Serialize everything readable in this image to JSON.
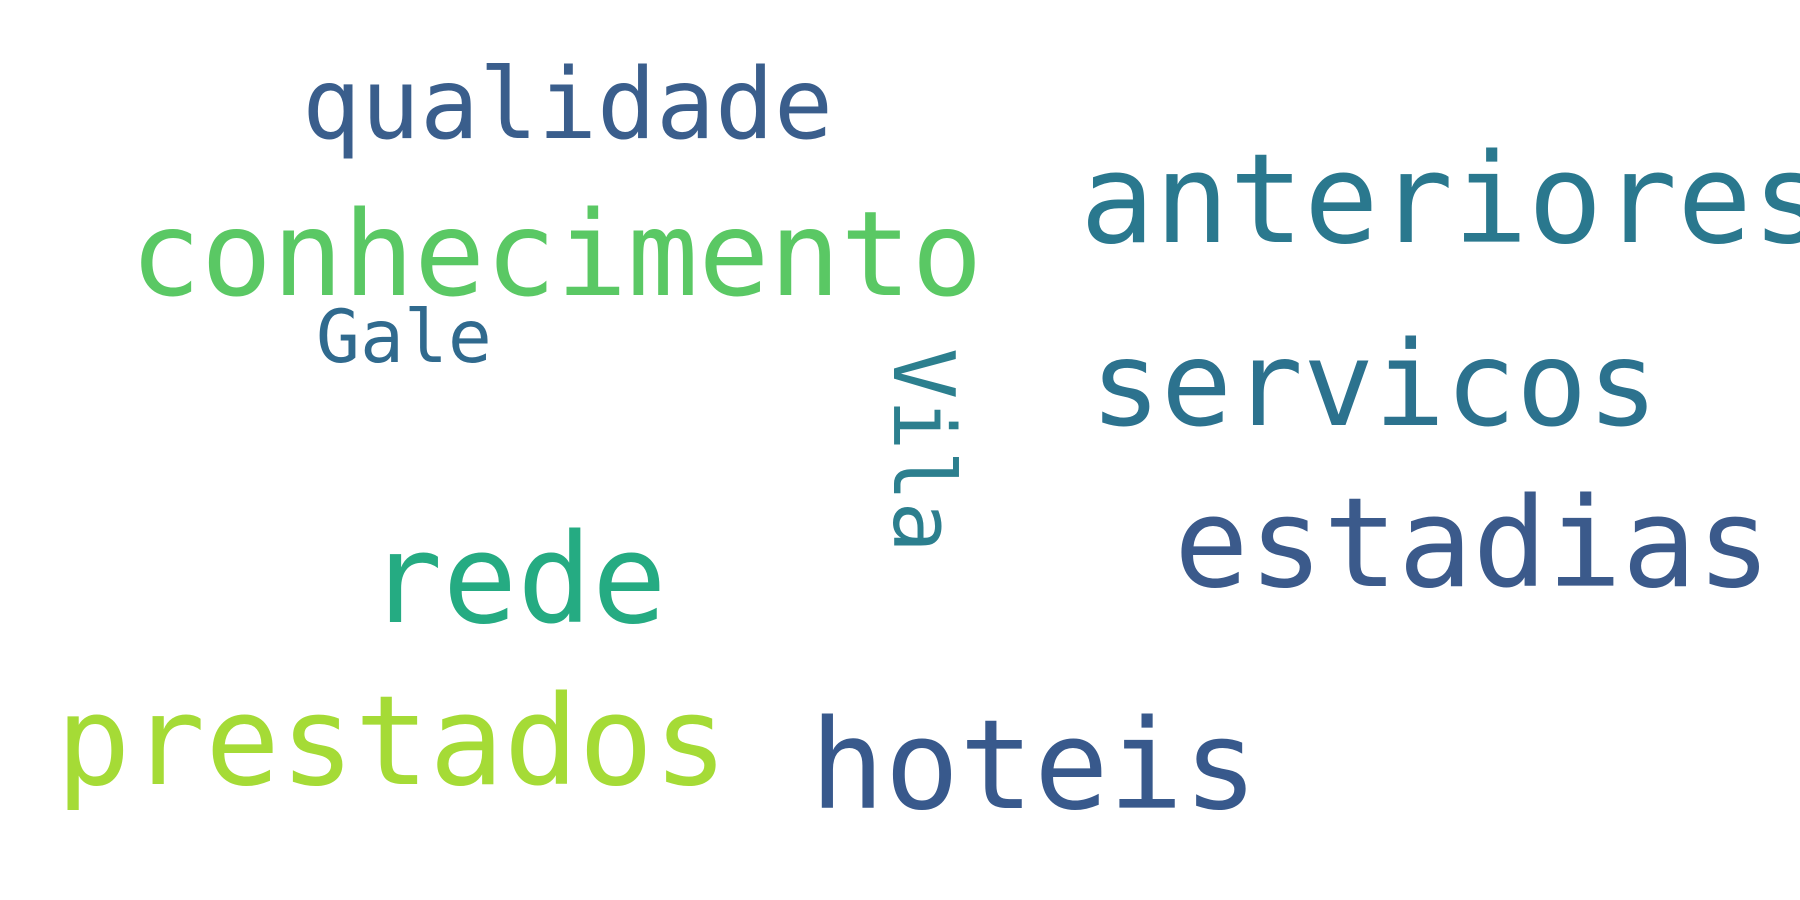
{
  "words": [
    {
      "id": "qualidade",
      "text": "qualidade",
      "color": "#3a5e8c",
      "rotated": false
    },
    {
      "id": "conhecimento",
      "text": "conhecimento",
      "color": "#5ac864",
      "rotated": false
    },
    {
      "id": "anteriores",
      "text": "anteriores",
      "color": "#2a788e",
      "rotated": false
    },
    {
      "id": "gale",
      "text": "Gale",
      "color": "#306a8e",
      "rotated": false
    },
    {
      "id": "servicos",
      "text": "servicos",
      "color": "#2c728e",
      "rotated": false
    },
    {
      "id": "vila",
      "text": "Vila",
      "color": "#2c7f8e",
      "rotated": true
    },
    {
      "id": "estadias",
      "text": "estadias",
      "color": "#3b5a8b",
      "rotated": false
    },
    {
      "id": "rede",
      "text": "rede",
      "color": "#25ab82",
      "rotated": false
    },
    {
      "id": "prestados",
      "text": "prestados",
      "color": "#a5db36",
      "rotated": false
    },
    {
      "id": "hoteis",
      "text": "hoteis",
      "color": "#38598c",
      "rotated": false
    }
  ]
}
